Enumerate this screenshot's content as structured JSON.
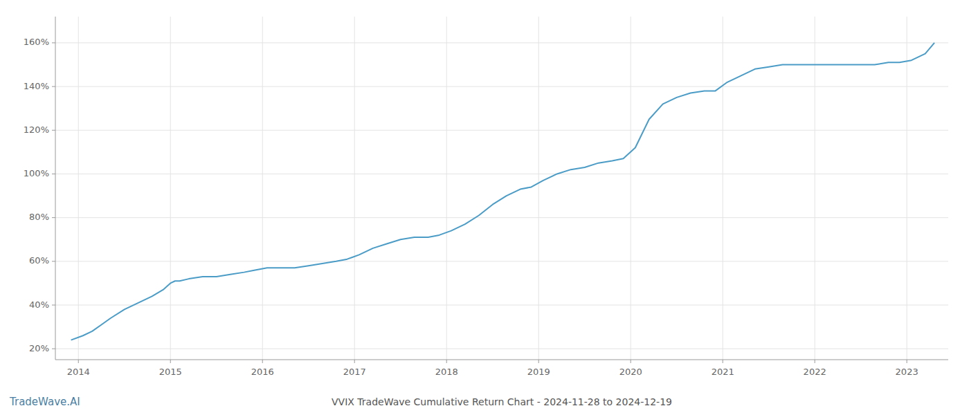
{
  "chart_data": {
    "type": "line",
    "title": "VVIX TradeWave Cumulative Return Chart - 2024-11-28 to 2024-12-19",
    "annotations": [
      "TradeWave.AI"
    ],
    "color": "#4a9cc7",
    "grid": true,
    "x": [
      2013.92,
      2014.05,
      2014.15,
      2014.25,
      2014.35,
      2014.5,
      2014.65,
      2014.8,
      2014.92,
      2015.0,
      2015.05,
      2015.1,
      2015.2,
      2015.35,
      2015.5,
      2015.65,
      2015.8,
      2015.92,
      2016.05,
      2016.2,
      2016.35,
      2016.5,
      2016.65,
      2016.8,
      2016.92,
      2017.05,
      2017.2,
      2017.35,
      2017.5,
      2017.65,
      2017.8,
      2017.92,
      2018.05,
      2018.2,
      2018.35,
      2018.5,
      2018.65,
      2018.8,
      2018.92,
      2019.05,
      2019.2,
      2019.35,
      2019.5,
      2019.65,
      2019.8,
      2019.92,
      2020.05,
      2020.2,
      2020.35,
      2020.5,
      2020.65,
      2020.8,
      2020.92,
      2021.05,
      2021.2,
      2021.35,
      2021.5,
      2021.65,
      2021.8,
      2021.92,
      2022.05,
      2022.2,
      2022.35,
      2022.5,
      2022.65,
      2022.8,
      2022.92,
      2023.05,
      2023.2,
      2023.3
    ],
    "values": [
      24,
      26,
      28,
      31,
      34,
      38,
      41,
      44,
      47,
      50,
      51,
      51,
      52,
      53,
      53,
      54,
      55,
      56,
      57,
      57,
      57,
      58,
      59,
      60,
      61,
      63,
      66,
      68,
      70,
      71,
      71,
      72,
      74,
      77,
      81,
      86,
      90,
      93,
      94,
      97,
      100,
      102,
      103,
      105,
      106,
      107,
      112,
      125,
      132,
      135,
      137,
      138,
      138,
      142,
      145,
      148,
      149,
      150,
      150,
      150,
      150,
      150,
      150,
      150,
      150,
      151,
      151,
      152,
      155,
      160
    ],
    "xlim": [
      2013.75,
      2023.45
    ],
    "xticks": [
      2014,
      2015,
      2016,
      2017,
      2018,
      2019,
      2020,
      2021,
      2022,
      2023
    ],
    "ylim": [
      15,
      172
    ],
    "yticks": [
      {
        "value": 20,
        "label": "20%"
      },
      {
        "value": 40,
        "label": "40%"
      },
      {
        "value": 60,
        "label": "60%"
      },
      {
        "value": 80,
        "label": "80%"
      },
      {
        "value": 100,
        "label": "100%"
      },
      {
        "value": 120,
        "label": "120%"
      },
      {
        "value": 140,
        "label": "140%"
      },
      {
        "value": 160,
        "label": "160%"
      }
    ]
  }
}
